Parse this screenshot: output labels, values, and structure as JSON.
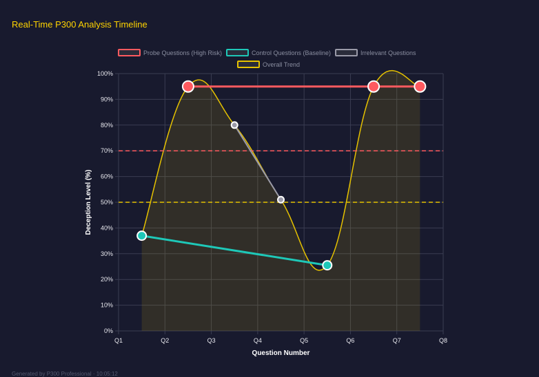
{
  "title": "Real-Time P300 Analysis Timeline",
  "footer": "Generated by P300 Professional · 10:05:12",
  "chart_data": {
    "type": "line",
    "xlabel": "Question Number",
    "ylabel": "Deception Level (%)",
    "x_ticks": [
      "Q1",
      "Q2",
      "Q3",
      "Q4",
      "Q5",
      "Q6",
      "Q7",
      "Q8"
    ],
    "y_ticks": [
      "0%",
      "10%",
      "20%",
      "30%",
      "40%",
      "50%",
      "60%",
      "70%",
      "80%",
      "90%",
      "100%"
    ],
    "ylim": [
      0,
      100
    ],
    "grid": true,
    "legend_position": "top",
    "series": [
      {
        "name": "Probe Questions (High Risk)",
        "color": "#ff5a5f",
        "points": [
          [
            2.5,
            95
          ],
          [
            6.5,
            95
          ],
          [
            7.5,
            95
          ]
        ]
      },
      {
        "name": "Control Questions (Baseline)",
        "color": "#1ec8b8",
        "points": [
          [
            1.5,
            37
          ],
          [
            5.5,
            25.5
          ]
        ]
      },
      {
        "name": "Irrelevant Questions",
        "color": "#9a9aa8",
        "points": [
          [
            3.5,
            80
          ],
          [
            4.5,
            51
          ]
        ]
      },
      {
        "name": "Overall Trend",
        "color": "#e6c200",
        "points": [
          [
            1.5,
            37
          ],
          [
            2.5,
            95
          ],
          [
            3.5,
            80
          ],
          [
            4.5,
            51
          ],
          [
            5.5,
            25.5
          ],
          [
            6.5,
            95
          ],
          [
            7.5,
            95
          ]
        ]
      }
    ],
    "thresholds": [
      {
        "value": 70,
        "color": "#ff5a5f"
      },
      {
        "value": 50,
        "color": "#e6c200"
      }
    ]
  }
}
